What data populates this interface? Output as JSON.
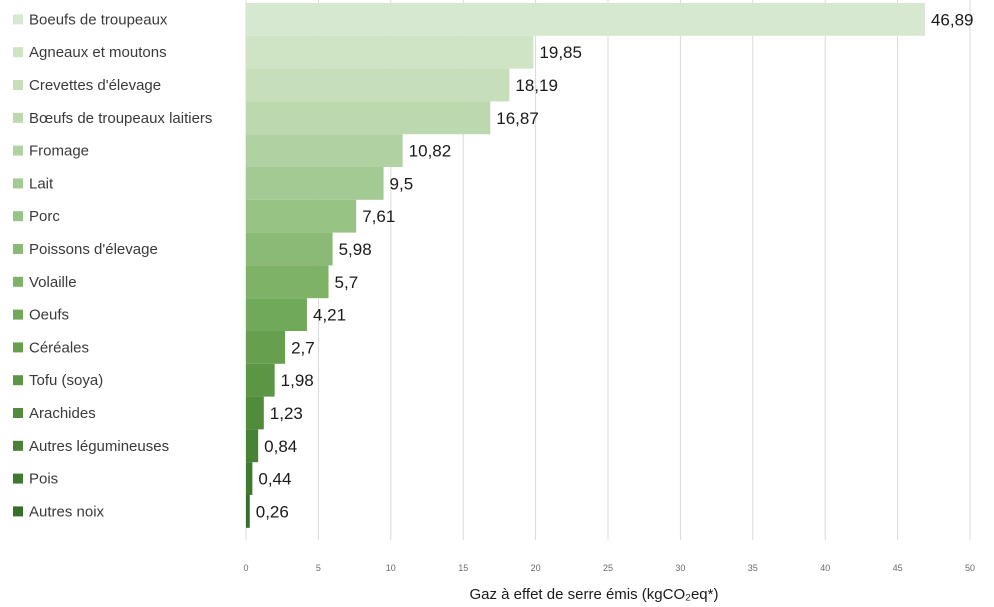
{
  "chart_data": {
    "type": "bar",
    "orientation": "horizontal",
    "categories": [
      "Boeufs de troupeaux",
      "Agneaux et moutons",
      "Crevettes d'élevage",
      "Bœufs de troupeaux laitiers",
      "Fromage",
      "Lait",
      "Porc",
      "Poissons d'élevage",
      "Volaille",
      "Oeufs",
      "Céréales",
      "Tofu (soya)",
      "Arachides",
      "Autres légumineuses",
      "Pois",
      "Autres noix"
    ],
    "values": [
      46.89,
      19.85,
      18.19,
      16.87,
      10.82,
      9.5,
      7.61,
      5.98,
      5.7,
      4.21,
      2.7,
      1.98,
      1.23,
      0.84,
      0.44,
      0.26
    ],
    "value_labels": [
      "46,89",
      "19,85",
      "18,19",
      "16,87",
      "10,82",
      "9,5",
      "7,61",
      "5,98",
      "5,7",
      "4,21",
      "2,7",
      "1,98",
      "1,23",
      "0,84",
      "0,44",
      "0,26"
    ],
    "colors": [
      "#d7e8d0",
      "#cfe3c5",
      "#c6deba",
      "#bcd8ae",
      "#b0d1a1",
      "#a4ca93",
      "#97c385",
      "#8aba76",
      "#7db267",
      "#71a95a",
      "#66a04e",
      "#5b9645",
      "#518c3d",
      "#488236",
      "#3f782f",
      "#376e29"
    ],
    "xlabel": "Gaz à effet de serre émis (kgCO₂eq*)",
    "xlim": [
      0,
      50
    ],
    "xticks": [
      0,
      5,
      10,
      15,
      20,
      25,
      30,
      35,
      40,
      45,
      50
    ],
    "grid": "vertical",
    "legend": "none"
  }
}
